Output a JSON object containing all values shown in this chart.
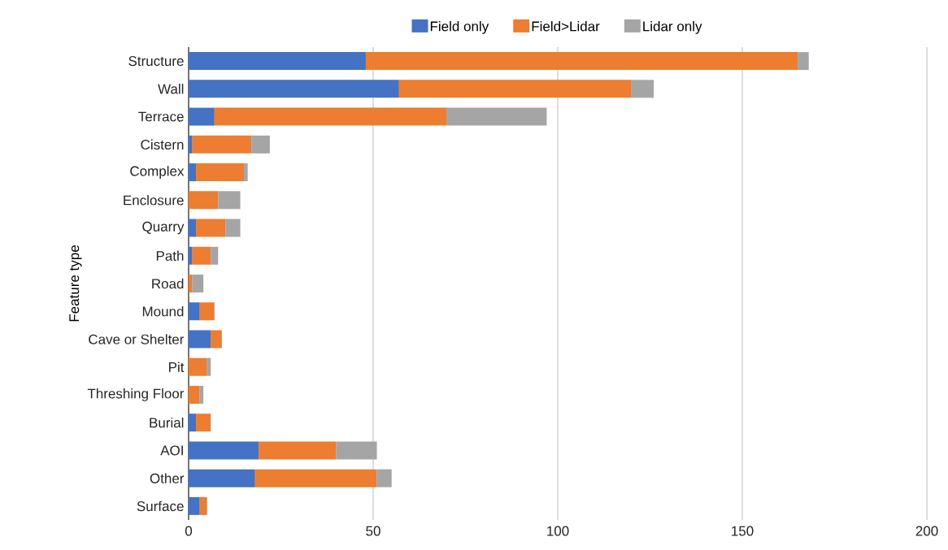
{
  "chart_data": {
    "type": "bar",
    "orientation": "horizontal",
    "stacked": true,
    "ylabel": "Feature type",
    "categories": [
      "Structure",
      "Wall",
      "Terrace",
      "Cistern",
      "Complex",
      "Enclosure",
      "Quarry",
      "Path",
      "Road",
      "Mound",
      "Cave or Shelter",
      "Pit",
      "Threshing Floor",
      "Burial",
      "AOI",
      "Other",
      "Surface"
    ],
    "series": [
      {
        "name": "Field only",
        "color": "#4472c4",
        "values": [
          48,
          57,
          7,
          1,
          2,
          0,
          2,
          1,
          0,
          3,
          6,
          0,
          0,
          2,
          19,
          18,
          3
        ]
      },
      {
        "name": "Field>Lidar",
        "color": "#ed7d31",
        "values": [
          117,
          63,
          63,
          16,
          13,
          8,
          8,
          5,
          1,
          4,
          3,
          5,
          3,
          4,
          21,
          33,
          2
        ]
      },
      {
        "name": "Lidar only",
        "color": "#a5a5a5",
        "values": [
          3,
          6,
          27,
          5,
          1,
          6,
          4,
          2,
          3,
          0,
          0,
          1,
          1,
          0,
          11,
          4,
          0
        ]
      }
    ],
    "xlim": [
      0,
      200
    ],
    "xticks": [
      0,
      50,
      100,
      150,
      200
    ],
    "grid": "x",
    "legend": "top"
  }
}
